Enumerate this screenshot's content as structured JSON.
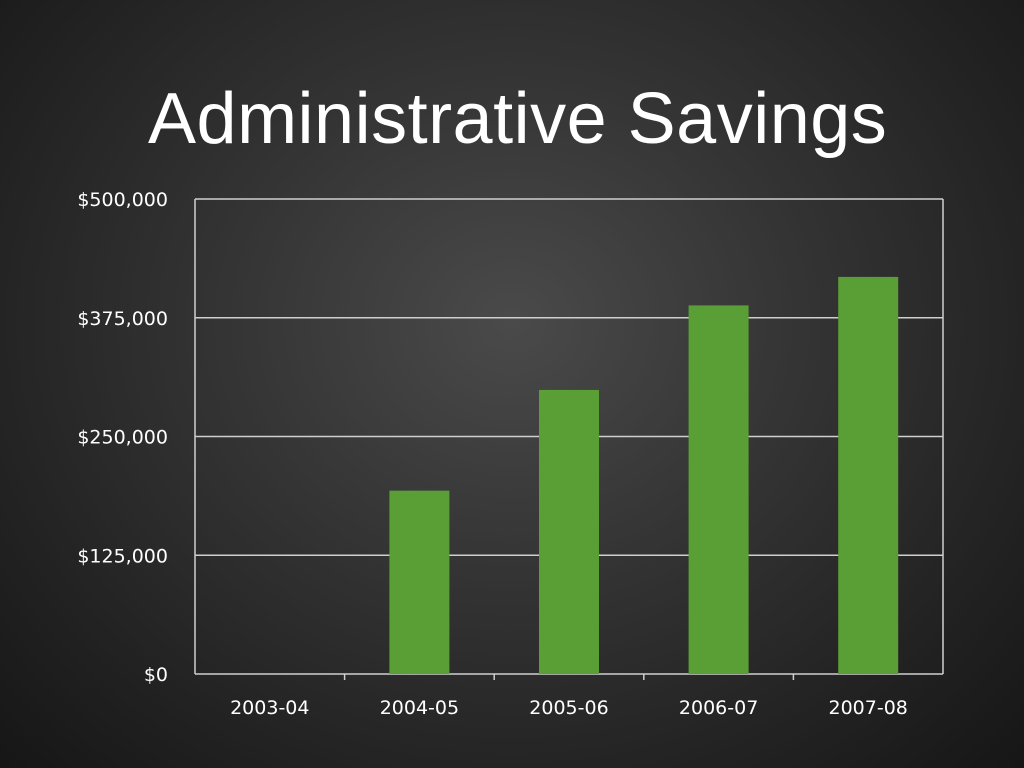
{
  "slide": {
    "title": "Administrative Savings"
  },
  "colors": {
    "bar": "#5a9e36",
    "grid": "#cfcfcf",
    "text": "#ffffff"
  },
  "chart_data": {
    "type": "bar",
    "title": "Administrative Savings",
    "categories": [
      "2003-04",
      "2004-05",
      "2005-06",
      "2006-07",
      "2007-08"
    ],
    "values": [
      0,
      193000,
      299000,
      388000,
      418000
    ],
    "ylim": [
      0,
      500000
    ],
    "yticks": [
      0,
      125000,
      250000,
      375000,
      500000
    ],
    "ytick_labels": [
      "$0",
      "$125,000",
      "$250,000",
      "$375,000",
      "$500,000"
    ],
    "grid": true,
    "legend": "none"
  }
}
